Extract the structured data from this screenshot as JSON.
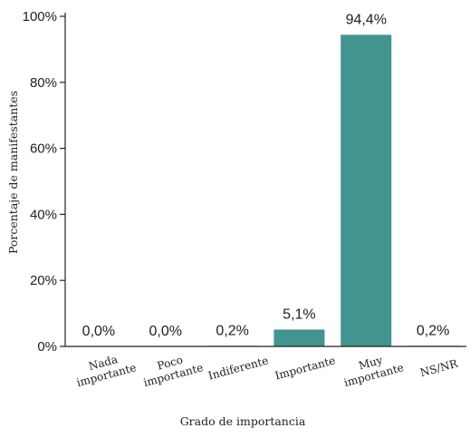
{
  "chart_data": {
    "type": "bar",
    "categories": [
      [
        "Nada",
        "importante"
      ],
      [
        "Poco",
        "importante"
      ],
      [
        "Indiferente"
      ],
      [
        "Importante"
      ],
      [
        "Muy",
        "importante"
      ],
      [
        "NS/NR"
      ]
    ],
    "values": [
      0.0,
      0.0,
      0.2,
      5.1,
      94.4,
      0.2
    ],
    "data_labels": [
      "0,0%",
      "0,0%",
      "0,2%",
      "5,1%",
      "94,4%",
      "0,2%"
    ],
    "xlabel": "Grado de importancia",
    "ylabel": "Porcentaje de manifestantes",
    "ylim": [
      0,
      100
    ],
    "yticks": [
      0,
      20,
      40,
      60,
      80,
      100
    ],
    "ytick_labels": [
      "0%",
      "20%",
      "40%",
      "60%",
      "80%",
      "100%"
    ],
    "bar_color": "#419490",
    "grid": false,
    "legend": "none"
  }
}
